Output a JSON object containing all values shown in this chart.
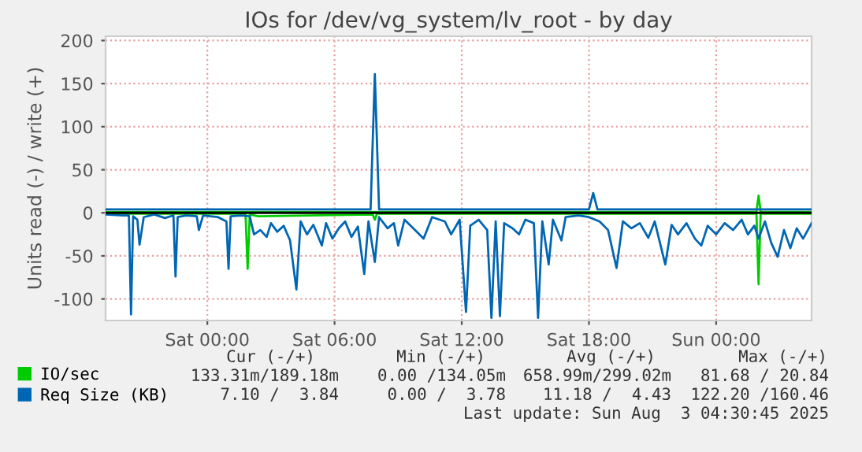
{
  "chart_data": {
    "type": "line",
    "title": "IOs for /dev/vg_system/lv_root - by day",
    "ylabel": "Units read (-) / write (+)",
    "xlim": [
      "2025-08-01T19:12",
      "2025-08-03T04:30"
    ],
    "ylim": [
      -125,
      205
    ],
    "xticks": [
      {
        "value": "2025-08-02T00:00",
        "label": "Sat 00:00"
      },
      {
        "value": "2025-08-02T06:00",
        "label": "Sat 06:00"
      },
      {
        "value": "2025-08-02T12:00",
        "label": "Sat 12:00"
      },
      {
        "value": "2025-08-02T18:00",
        "label": "Sat 18:00"
      },
      {
        "value": "2025-08-03T00:00",
        "label": "Sun 00:00"
      }
    ],
    "yticks": [
      -100,
      -50,
      0,
      50,
      100,
      150,
      200
    ],
    "grid": true,
    "legend": "bottom left",
    "line_style": "solid",
    "marker": "none",
    "ref_lines": [
      {
        "axis": "y",
        "value": 0,
        "color": "#000000"
      }
    ],
    "series": [
      {
        "color": "#00cc00",
        "x": [
          "2025-08-01T19:12",
          "2025-08-02T01:48",
          "2025-08-02T01:54",
          "2025-08-02T02:00",
          "2025-08-02T02:24",
          "2025-08-02T07:48",
          "2025-08-02T07:54",
          "2025-08-02T08:00",
          "2025-08-03T01:54",
          "2025-08-03T02:00",
          "2025-08-03T02:06",
          "2025-08-03T04:30"
        ],
        "values": [
          -1,
          -1,
          -65,
          -2,
          -4,
          -2,
          -8,
          -1,
          -1,
          -83,
          -1,
          -1
        ]
      },
      {
        "name": "IO/sec",
        "color": "#00cc00",
        "x": [
          "2025-08-01T19:12",
          "2025-08-03T01:54",
          "2025-08-03T02:00",
          "2025-08-03T02:06",
          "2025-08-03T04:30"
        ],
        "values": [
          1,
          1,
          20,
          1,
          1
        ]
      },
      {
        "color": "#0066b3",
        "x": [
          "2025-08-01T19:12",
          "2025-08-01T20:00",
          "2025-08-01T20:18",
          "2025-08-01T20:24",
          "2025-08-01T20:30",
          "2025-08-01T20:42",
          "2025-08-01T20:48",
          "2025-08-01T21:00",
          "2025-08-01T21:30",
          "2025-08-01T22:00",
          "2025-08-01T22:24",
          "2025-08-01T22:30",
          "2025-08-01T22:36",
          "2025-08-01T23:00",
          "2025-08-01T23:30",
          "2025-08-01T23:36",
          "2025-08-01T23:48",
          "2025-08-02T00:30",
          "2025-08-02T00:54",
          "2025-08-02T01:00",
          "2025-08-02T01:06",
          "2025-08-02T01:36",
          "2025-08-02T02:00",
          "2025-08-02T02:12",
          "2025-08-02T02:30",
          "2025-08-02T02:48",
          "2025-08-02T03:00",
          "2025-08-02T03:18",
          "2025-08-02T03:36",
          "2025-08-02T03:54",
          "2025-08-02T04:12",
          "2025-08-02T04:24",
          "2025-08-02T04:42",
          "2025-08-02T05:00",
          "2025-08-02T05:24",
          "2025-08-02T05:36",
          "2025-08-02T05:54",
          "2025-08-02T06:12",
          "2025-08-02T06:30",
          "2025-08-02T06:48",
          "2025-08-02T07:06",
          "2025-08-02T07:24",
          "2025-08-02T07:36",
          "2025-08-02T07:54",
          "2025-08-02T08:06",
          "2025-08-02T08:30",
          "2025-08-02T08:48",
          "2025-08-02T09:00",
          "2025-08-02T09:18",
          "2025-08-02T09:48",
          "2025-08-02T10:12",
          "2025-08-02T10:36",
          "2025-08-02T11:12",
          "2025-08-02T11:30",
          "2025-08-02T11:54",
          "2025-08-02T12:12",
          "2025-08-02T12:24",
          "2025-08-02T12:48",
          "2025-08-02T13:12",
          "2025-08-02T13:24",
          "2025-08-02T13:36",
          "2025-08-02T13:48",
          "2025-08-02T14:00",
          "2025-08-02T14:24",
          "2025-08-02T14:42",
          "2025-08-02T15:00",
          "2025-08-02T15:24",
          "2025-08-02T15:36",
          "2025-08-02T15:48",
          "2025-08-02T16:06",
          "2025-08-02T16:18",
          "2025-08-02T16:42",
          "2025-08-02T16:54",
          "2025-08-02T17:30",
          "2025-08-02T18:00",
          "2025-08-02T18:30",
          "2025-08-02T18:54",
          "2025-08-02T19:18",
          "2025-08-02T19:36",
          "2025-08-02T20:00",
          "2025-08-02T20:24",
          "2025-08-02T20:48",
          "2025-08-02T21:06",
          "2025-08-02T21:36",
          "2025-08-02T21:54",
          "2025-08-02T22:12",
          "2025-08-02T22:36",
          "2025-08-02T23:00",
          "2025-08-02T23:18",
          "2025-08-02T23:36",
          "2025-08-03T00:00",
          "2025-08-03T00:24",
          "2025-08-03T00:48",
          "2025-08-03T01:12",
          "2025-08-03T01:30",
          "2025-08-03T01:48",
          "2025-08-03T02:00",
          "2025-08-03T02:18",
          "2025-08-03T02:36",
          "2025-08-03T02:54",
          "2025-08-03T03:12",
          "2025-08-03T03:30",
          "2025-08-03T03:48",
          "2025-08-03T04:06",
          "2025-08-03T04:30"
        ],
        "values": [
          -2,
          -3,
          -3,
          -118,
          -4,
          -8,
          -37,
          -5,
          -2,
          -6,
          -3,
          -74,
          -5,
          -3,
          -4,
          -20,
          -3,
          -5,
          -10,
          -65,
          -4,
          -3,
          -4,
          -25,
          -20,
          -28,
          -12,
          -22,
          -15,
          -32,
          -89,
          -10,
          -25,
          -14,
          -38,
          -12,
          -30,
          -18,
          -10,
          -28,
          -16,
          -71,
          -10,
          -57,
          -5,
          -18,
          -12,
          -38,
          -8,
          -20,
          -30,
          -5,
          -10,
          -25,
          -8,
          -115,
          -15,
          -8,
          -20,
          -122,
          -10,
          -120,
          -12,
          -18,
          -25,
          -8,
          -12,
          -122,
          -10,
          -60,
          -8,
          -32,
          -5,
          -3,
          -5,
          -10,
          -20,
          -64,
          -10,
          -18,
          -12,
          -29,
          -10,
          -60,
          -14,
          -25,
          -12,
          -30,
          -38,
          -15,
          -25,
          -12,
          -20,
          -8,
          -25,
          -15,
          -30,
          -10,
          -35,
          -51,
          -20,
          -41,
          -18,
          -30,
          -12
        ]
      },
      {
        "name": "Req Size (KB)",
        "color": "#0066b3",
        "x": [
          "2025-08-01T19:12",
          "2025-08-02T07:42",
          "2025-08-02T07:54",
          "2025-08-02T08:06",
          "2025-08-02T18:00",
          "2025-08-02T18:12",
          "2025-08-02T18:24",
          "2025-08-03T04:30"
        ],
        "values": [
          4,
          4,
          161,
          4,
          4,
          23,
          4,
          4
        ]
      }
    ],
    "annotations": [
      "Cur (-/+)",
      "Min (-/+)",
      "Avg (-/+)",
      "Max (-/+)",
      "133.31m/189.18m",
      "0.00 /134.05m",
      "658.99m/299.02m",
      "81.68 / 20.84",
      "7.10 /  3.84",
      "0.00 /  3.78",
      "11.18 /  4.43",
      "122.20 /160.46",
      "Last update: Sun Aug  3 04:30:45 2025"
    ]
  }
}
